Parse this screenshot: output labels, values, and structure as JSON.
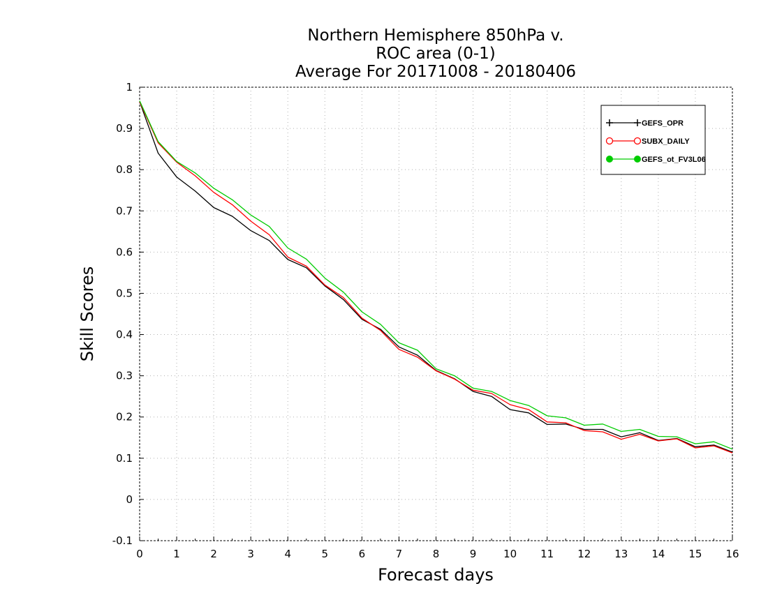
{
  "chart_data": {
    "type": "line",
    "title": [
      "Northern Hemisphere 850hPa v.",
      "ROC area (0-1)",
      "Average For 20171008 - 20180406"
    ],
    "xlabel": "Forecast days",
    "ylabel": "Skill Scores",
    "xlim": [
      0,
      16
    ],
    "ylim": [
      -0.1,
      1
    ],
    "xticks": [
      0,
      1,
      2,
      3,
      4,
      5,
      6,
      7,
      8,
      9,
      10,
      11,
      12,
      13,
      14,
      15,
      16
    ],
    "xtick_labels": [
      "0",
      "1",
      "2",
      "3",
      "4",
      "5",
      "6",
      "7",
      "8",
      "9",
      "10",
      "11",
      "12",
      "13",
      "14",
      "15",
      "16"
    ],
    "yticks": [
      -0.1,
      0,
      0.1,
      0.2,
      0.3,
      0.4,
      0.5,
      0.6,
      0.7,
      0.8,
      0.9,
      1
    ],
    "ytick_labels": [
      "-0.1",
      "0",
      "0.1",
      "0.2",
      "0.3",
      "0.4",
      "0.5",
      "0.6",
      "0.7",
      "0.8",
      "0.9",
      "1"
    ],
    "grid": true,
    "legend_position": "top-right",
    "x": [
      0,
      0.5,
      1,
      1.5,
      2,
      2.5,
      3,
      3.5,
      4,
      4.5,
      5,
      5.5,
      6,
      6.5,
      7,
      7.5,
      8,
      8.5,
      9,
      9.5,
      10,
      10.5,
      11,
      11.5,
      12,
      12.5,
      13,
      13.5,
      14,
      14.5,
      15,
      15.5,
      16
    ],
    "series": [
      {
        "name": "GEFS_OPR",
        "color": "#000000",
        "marker": "plus",
        "values": [
          0.965,
          0.84,
          0.782,
          0.748,
          0.708,
          0.687,
          0.652,
          0.628,
          0.582,
          0.562,
          0.518,
          0.485,
          0.437,
          0.413,
          0.37,
          0.35,
          0.313,
          0.293,
          0.262,
          0.25,
          0.218,
          0.21,
          0.182,
          0.183,
          0.17,
          0.17,
          0.152,
          0.162,
          0.143,
          0.148,
          0.128,
          0.132,
          0.115
        ]
      },
      {
        "name": "SUBX_DAILY",
        "color": "#ff0000",
        "marker": "open-circle",
        "values": [
          0.965,
          0.865,
          0.818,
          0.785,
          0.745,
          0.715,
          0.675,
          0.642,
          0.588,
          0.566,
          0.52,
          0.49,
          0.44,
          0.41,
          0.364,
          0.345,
          0.312,
          0.292,
          0.265,
          0.257,
          0.23,
          0.218,
          0.188,
          0.186,
          0.167,
          0.164,
          0.146,
          0.158,
          0.142,
          0.147,
          0.125,
          0.13,
          0.113
        ]
      },
      {
        "name": "GEFS_ot_FV3L06",
        "color": "#00cc00",
        "marker": "filled-circle",
        "values": [
          0.967,
          0.868,
          0.82,
          0.792,
          0.755,
          0.727,
          0.69,
          0.662,
          0.61,
          0.583,
          0.537,
          0.503,
          0.455,
          0.425,
          0.38,
          0.362,
          0.317,
          0.3,
          0.27,
          0.262,
          0.24,
          0.228,
          0.203,
          0.198,
          0.18,
          0.183,
          0.165,
          0.17,
          0.153,
          0.152,
          0.135,
          0.14,
          0.122
        ]
      }
    ]
  }
}
